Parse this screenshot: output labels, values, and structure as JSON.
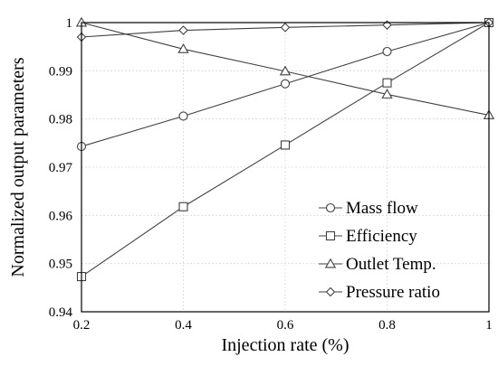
{
  "chart_data": {
    "type": "line",
    "xlabel": "Injection rate (%)",
    "ylabel": "Normalized output parameters",
    "xlim": [
      0.2,
      1
    ],
    "ylim": [
      0.94,
      1
    ],
    "xticks": [
      "0.2",
      "0.4",
      "0.6",
      "0.8",
      "1"
    ],
    "yticks": [
      "0.94",
      "0.95",
      "0.96",
      "0.97",
      "0.98",
      "0.99",
      "1"
    ],
    "grid": true,
    "legend_position": "lower-right",
    "x": [
      0.2,
      0.4,
      0.6,
      0.8,
      1.0
    ],
    "series": [
      {
        "name": "Mass flow",
        "marker": "circle",
        "values": [
          0.9743,
          0.9806,
          0.9873,
          0.994,
          1.0
        ]
      },
      {
        "name": "Efficiency",
        "marker": "square",
        "values": [
          0.9473,
          0.9618,
          0.9746,
          0.9875,
          1.0
        ]
      },
      {
        "name": "Outlet Temp.",
        "marker": "triangle",
        "values": [
          1.0,
          0.9945,
          0.9899,
          0.9851,
          0.9808
        ]
      },
      {
        "name": "Pressure ratio",
        "marker": "diamond",
        "values": [
          0.997,
          0.9984,
          0.999,
          0.9995,
          1.0
        ]
      }
    ]
  }
}
